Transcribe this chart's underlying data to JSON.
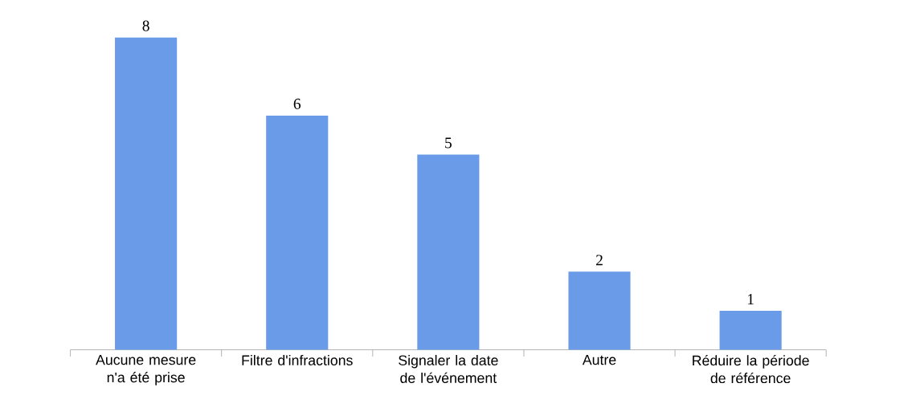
{
  "chart_data": {
    "type": "bar",
    "categories": [
      "Aucune mesure n'a été prise",
      "Filtre d'infractions",
      "Signaler la date de l'événement",
      "Autre",
      "Réduire la période de référence"
    ],
    "values": [
      8,
      6,
      5,
      2,
      1
    ],
    "color": "#6a9be8",
    "data_labels": true
  }
}
